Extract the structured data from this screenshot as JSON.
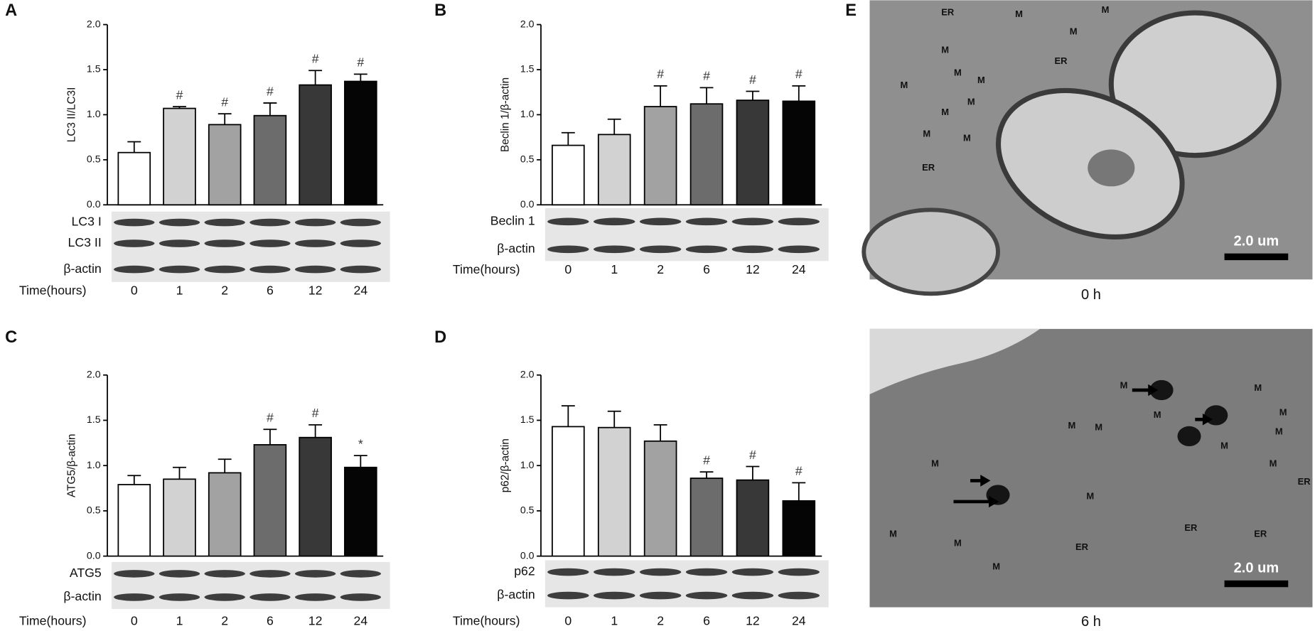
{
  "chart_data": [
    {
      "type": "bar",
      "panel_label": "A",
      "y_label": "LC3 II/LC3I",
      "x_label": "Time(hours)",
      "categories": [
        "0",
        "1",
        "2",
        "6",
        "12",
        "24"
      ],
      "values": [
        0.58,
        1.07,
        0.89,
        0.99,
        1.33,
        1.37
      ],
      "errors": [
        0.12,
        0.02,
        0.12,
        0.14,
        0.16,
        0.08
      ],
      "colors": [
        "#ffffff",
        "#d2d2d2",
        "#a2a2a2",
        "#6c6c6c",
        "#383838",
        "#050505"
      ],
      "annotations": [
        null,
        "#",
        "#",
        "#",
        "#",
        "#"
      ],
      "blot_labels": [
        "LC3 I",
        "LC3 II",
        "β-actin"
      ],
      "ylim": [
        0,
        2
      ],
      "yticks": [
        {
          "value": 0,
          "label": "0.0"
        },
        {
          "value": 0.5,
          "label": "0.5"
        },
        {
          "value": 1,
          "label": "1.0"
        },
        {
          "value": 1.5,
          "label": "1.5"
        },
        {
          "value": 2,
          "label": "2.0"
        }
      ]
    },
    {
      "type": "bar",
      "panel_label": "B",
      "y_label": "Beclin 1/β-actin",
      "x_label": "Time(hours)",
      "categories": [
        "0",
        "1",
        "2",
        "6",
        "12",
        "24"
      ],
      "values": [
        0.66,
        0.78,
        1.09,
        1.12,
        1.16,
        1.15
      ],
      "errors": [
        0.14,
        0.17,
        0.23,
        0.18,
        0.1,
        0.17
      ],
      "colors": [
        "#ffffff",
        "#d2d2d2",
        "#a2a2a2",
        "#6c6c6c",
        "#383838",
        "#050505"
      ],
      "annotations": [
        null,
        null,
        "#",
        "#",
        "#",
        "#"
      ],
      "blot_labels": [
        "Beclin 1",
        "β-actin"
      ],
      "ylim": [
        0,
        2
      ],
      "yticks": [
        {
          "value": 0,
          "label": "0.0"
        },
        {
          "value": 0.5,
          "label": "0.5"
        },
        {
          "value": 1,
          "label": "1.0"
        },
        {
          "value": 1.5,
          "label": "1.5"
        },
        {
          "value": 2,
          "label": "2.0"
        }
      ]
    },
    {
      "type": "bar",
      "panel_label": "C",
      "y_label": "ATG5/β-actin",
      "x_label": "Time(hours)",
      "categories": [
        "0",
        "1",
        "2",
        "6",
        "12",
        "24"
      ],
      "values": [
        0.79,
        0.85,
        0.92,
        1.23,
        1.31,
        0.98
      ],
      "errors": [
        0.1,
        0.13,
        0.15,
        0.17,
        0.14,
        0.13
      ],
      "colors": [
        "#ffffff",
        "#d2d2d2",
        "#a2a2a2",
        "#6c6c6c",
        "#383838",
        "#050505"
      ],
      "annotations": [
        null,
        null,
        null,
        "#",
        "#",
        "*"
      ],
      "blot_labels": [
        "ATG5",
        "β-actin"
      ],
      "ylim": [
        0,
        2
      ],
      "yticks": [
        {
          "value": 0,
          "label": "0.0"
        },
        {
          "value": 0.5,
          "label": "0.5"
        },
        {
          "value": 1,
          "label": "1.0"
        },
        {
          "value": 1.5,
          "label": "1.5"
        },
        {
          "value": 2,
          "label": "2.0"
        }
      ]
    },
    {
      "type": "bar",
      "panel_label": "D",
      "y_label": "p62/β-actin",
      "x_label": "Time(hours)",
      "categories": [
        "0",
        "1",
        "2",
        "6",
        "12",
        "24"
      ],
      "values": [
        1.43,
        1.42,
        1.27,
        0.86,
        0.84,
        0.61
      ],
      "errors": [
        0.23,
        0.18,
        0.18,
        0.07,
        0.15,
        0.2
      ],
      "colors": [
        "#ffffff",
        "#d2d2d2",
        "#a2a2a2",
        "#6c6c6c",
        "#383838",
        "#050505"
      ],
      "annotations": [
        null,
        null,
        null,
        "#",
        "#",
        "#"
      ],
      "blot_labels": [
        "p62",
        "β-actin"
      ],
      "ylim": [
        0,
        2
      ],
      "yticks": [
        {
          "value": 0,
          "label": "0.0"
        },
        {
          "value": 0.5,
          "label": "0.5"
        },
        {
          "value": 1,
          "label": "1.0"
        },
        {
          "value": 1.5,
          "label": "1.5"
        },
        {
          "value": 2,
          "label": "2.0"
        }
      ]
    }
  ],
  "em_panel": {
    "panel_label": "E",
    "images": [
      {
        "caption": "0 h",
        "scale_bar": "2.0 um",
        "labels": [
          "ER",
          "M",
          "M",
          "M",
          "ER",
          "M",
          "M",
          "M",
          "M",
          "M",
          "M",
          "M",
          "M",
          "ER"
        ]
      },
      {
        "caption": "6 h",
        "scale_bar": "2.0 um",
        "labels": [
          "M",
          "M",
          "M",
          "M",
          "M",
          "M",
          "M",
          "M",
          "M",
          "ER",
          "M",
          "M",
          "ER",
          "ER",
          "ER",
          "M",
          "M",
          "M"
        ]
      }
    ]
  }
}
